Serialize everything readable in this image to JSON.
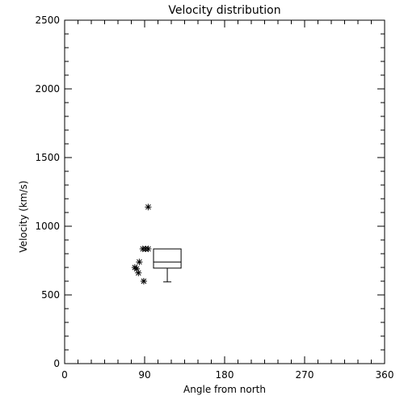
{
  "chart_data": {
    "type": "scatter",
    "title": "Velocity distribution",
    "xlabel": "Angle from north",
    "ylabel": "Velocity (km/s)",
    "xlim": [
      0,
      360
    ],
    "ylim": [
      0,
      2500
    ],
    "x_ticks": [
      0,
      90,
      180,
      270,
      360
    ],
    "y_ticks": [
      0,
      500,
      1000,
      1500,
      2000,
      2500
    ],
    "x_ticklabels": [
      "0",
      "90",
      "180",
      "270",
      "360"
    ],
    "y_ticklabels": [
      "0",
      "500",
      "1000",
      "1500",
      "2000",
      "2500"
    ],
    "grid": false,
    "marker": "asterisk",
    "points": [
      {
        "x": 94,
        "y": 1140
      },
      {
        "x": 88,
        "y": 835
      },
      {
        "x": 91,
        "y": 835
      },
      {
        "x": 94,
        "y": 835
      },
      {
        "x": 84,
        "y": 740
      },
      {
        "x": 79,
        "y": 700
      },
      {
        "x": 81,
        "y": 690
      },
      {
        "x": 83,
        "y": 660
      },
      {
        "x": 89,
        "y": 600
      }
    ],
    "boxplot": {
      "x_range": [
        100,
        131
      ],
      "min": 595,
      "q1": 695,
      "median": 740,
      "q3": 835,
      "max": 835
    },
    "color": "#000000"
  }
}
